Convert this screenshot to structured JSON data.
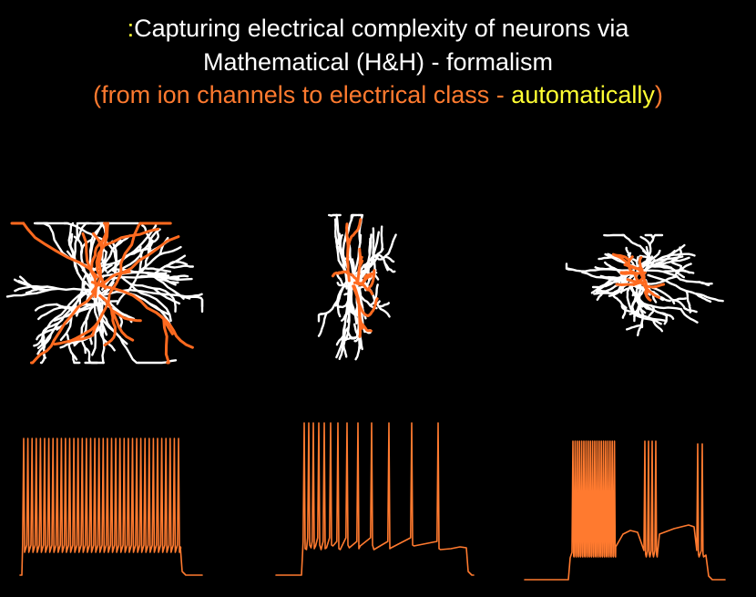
{
  "title": {
    "line1_prefix": ":",
    "line1_text": "Capturing electrical complexity of neurons via",
    "line2_text": "Mathematical (H&H) - formalism",
    "line3_part1": "(from ion channels to electrical class - ",
    "line3_part2": "automatically",
    "line3_part3": ")"
  },
  "colors": {
    "background": "#000000",
    "text": "#ffffff",
    "accent_orange": "#ff7a2f",
    "accent_yellow": "#ffff33",
    "dendrite_white": "#ffffff",
    "axon_orange": "#ff6a1f",
    "trace_orange": "#ff7a2f"
  },
  "neurons": [
    {
      "kind": "neuron-morphology-large"
    },
    {
      "kind": "neuron-morphology-bipolar"
    },
    {
      "kind": "neuron-morphology-compact"
    }
  ],
  "traces": [
    {
      "firing_pattern": "continuous-regular",
      "spike_count": 38
    },
    {
      "firing_pattern": "adapting",
      "spike_count": 13
    },
    {
      "firing_pattern": "bursting",
      "burst_spike_counts": [
        20,
        4,
        2
      ]
    }
  ]
}
